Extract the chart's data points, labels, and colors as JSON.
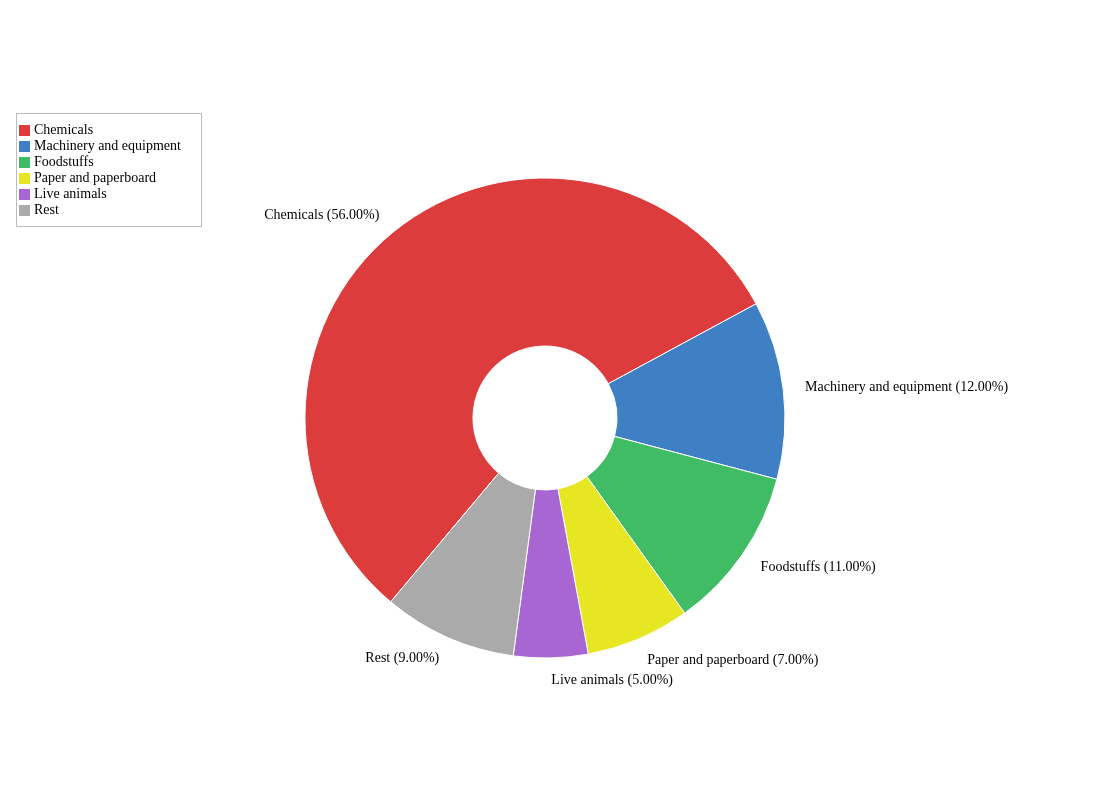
{
  "chart_data": {
    "type": "donut",
    "categories": [
      "Chemicals",
      "Machinery and equipment",
      "Foodstuffs",
      "Paper and paperboard",
      "Live animals",
      "Rest"
    ],
    "values": [
      56,
      12,
      11,
      7,
      5,
      9
    ],
    "colors": [
      "#dc3c3c",
      "#3f7fc4",
      "#40bd64",
      "#e6e622",
      "#a866d2",
      "#aaaaaa"
    ],
    "value_labels": [
      "(56.00%)",
      "(12.00%)",
      "(11.00%)",
      "(7.00%)",
      "(5.00%)",
      "(9.00%)"
    ],
    "legend": "top left"
  }
}
